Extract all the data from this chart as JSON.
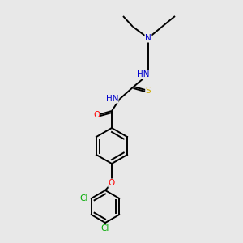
{
  "background_color": "#e8e8e8",
  "atom_colors": {
    "N": "#0000cd",
    "O": "#ff0000",
    "S": "#ccaa00",
    "Cl": "#00aa00",
    "C": "#000000",
    "H": "#000000"
  },
  "bond_color": "#000000",
  "font_size": 7.5,
  "figsize": [
    3.0,
    3.0
  ],
  "dpi": 100,
  "lw": 1.4
}
